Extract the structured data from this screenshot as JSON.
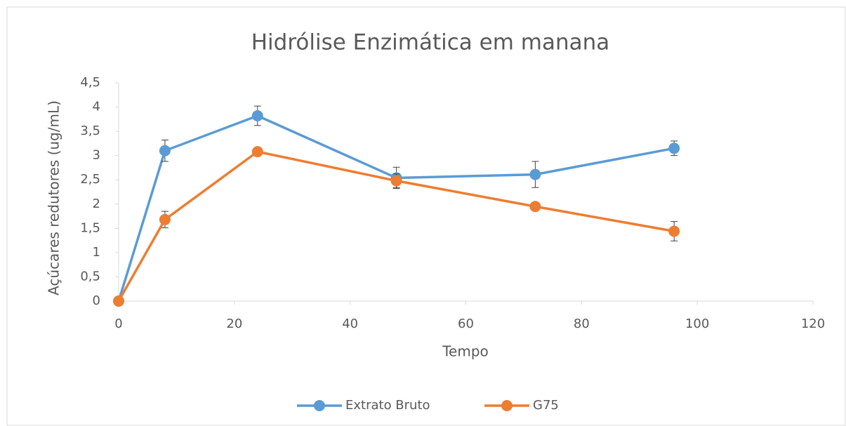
{
  "chart_data": {
    "type": "line",
    "title": "Hidrólise Enzimática em manana",
    "xlabel": "Tempo",
    "ylabel": "Açúcares redutores (ug/mL)",
    "x": [
      0,
      8,
      24,
      48,
      72,
      96
    ],
    "series": [
      {
        "name": "Extrato Bruto",
        "color": "#5b9bd5",
        "values": [
          0,
          3.1,
          3.82,
          2.54,
          2.61,
          3.15
        ],
        "errors": [
          0,
          0.22,
          0.2,
          0.22,
          0.27,
          0.15
        ]
      },
      {
        "name": "G75",
        "color": "#ed7d31",
        "values": [
          0,
          1.68,
          3.08,
          2.48,
          1.95,
          1.44
        ],
        "errors": [
          0,
          0.17,
          0,
          0.14,
          0,
          0.2
        ]
      }
    ],
    "xlim": [
      0,
      120
    ],
    "xticks": [
      0,
      20,
      40,
      60,
      80,
      100,
      120
    ],
    "ylim": [
      0,
      4.5
    ],
    "yticks": [
      0,
      {
        "value": 0.5,
        "label": "0,5"
      },
      1,
      {
        "value": 1.5,
        "label": "1,5"
      },
      2,
      {
        "value": 2.5,
        "label": "2,5"
      },
      3,
      {
        "value": 3.5,
        "label": "3,5"
      },
      4,
      {
        "value": 4.5,
        "label": "4,5"
      }
    ],
    "grid": false,
    "legend": "bottom"
  }
}
